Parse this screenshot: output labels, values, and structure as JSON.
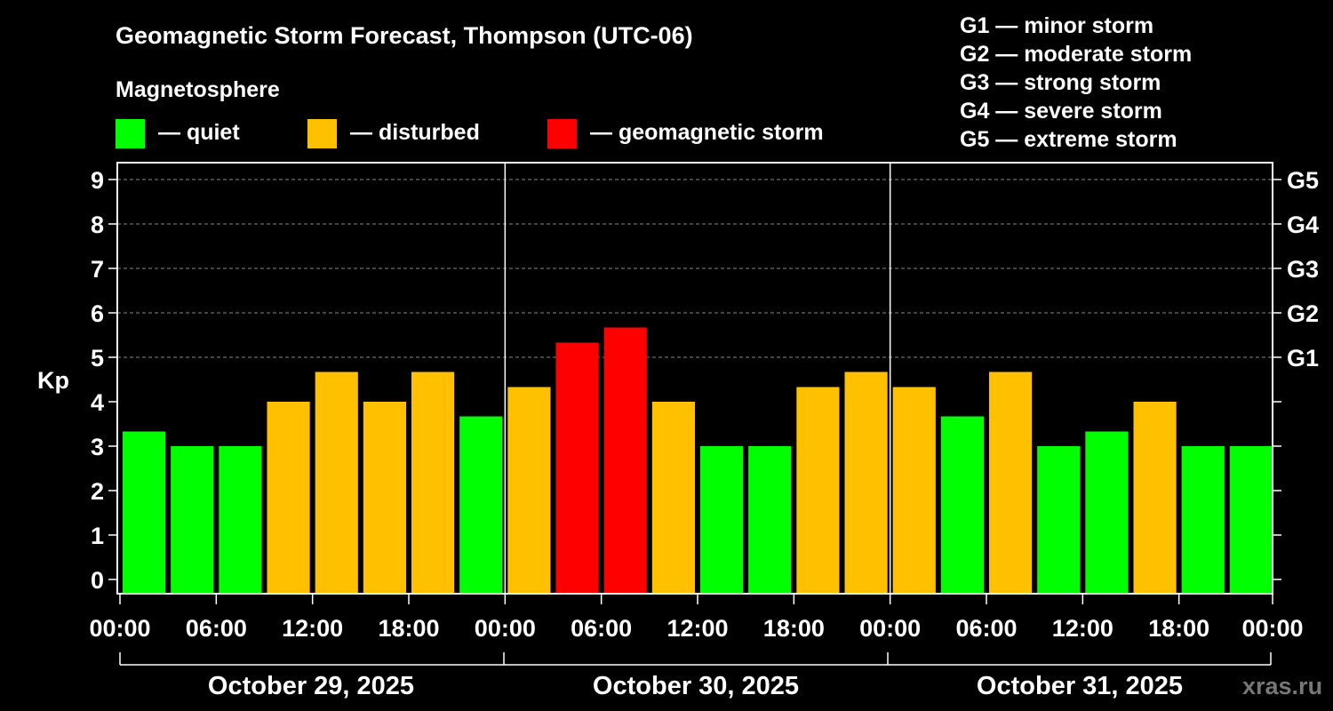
{
  "title": "Geomagnetic Storm Forecast, Thompson (UTC-06)",
  "legend": {
    "heading": "Magnetosphere",
    "items": [
      {
        "label": "— quiet",
        "color": "#00FF00"
      },
      {
        "label": "— disturbed",
        "color": "#FFC000"
      },
      {
        "label": "— geomagnetic storm",
        "color": "#FF0000"
      }
    ]
  },
  "g_legend": [
    "G1 — minor storm",
    "G2 — moderate storm",
    "G3 — strong storm",
    "G4 — severe storm",
    "G5 — extreme storm"
  ],
  "watermark": "xras.ru",
  "chart_data": {
    "type": "bar",
    "title": "Geomagnetic Storm Forecast, Thompson (UTC-06)",
    "ylabel": "Kp",
    "ylim": [
      0,
      9
    ],
    "yticks": [
      "0",
      "1",
      "2",
      "3",
      "4",
      "5",
      "6",
      "7",
      "8",
      "9"
    ],
    "right_axis": [
      {
        "kp": 5,
        "label": "G1"
      },
      {
        "kp": 6,
        "label": "G2"
      },
      {
        "kp": 7,
        "label": "G3"
      },
      {
        "kp": 8,
        "label": "G4"
      },
      {
        "kp": 9,
        "label": "G5"
      }
    ],
    "xticks": [
      "00:00",
      "06:00",
      "12:00",
      "18:00",
      "00:00",
      "06:00",
      "12:00",
      "18:00",
      "00:00",
      "06:00",
      "12:00",
      "18:00",
      "00:00"
    ],
    "days": [
      "October 29, 2025",
      "October 30, 2025",
      "October 31, 2025"
    ],
    "values": [
      3.33,
      3.0,
      3.0,
      4.0,
      4.67,
      4.0,
      4.67,
      3.67,
      4.33,
      5.33,
      5.67,
      4.0,
      3.0,
      3.0,
      4.33,
      4.67,
      4.33,
      3.67,
      4.67,
      3.0,
      3.33,
      4.0,
      3.0,
      3.0
    ],
    "levels": [
      "quiet",
      "quiet",
      "quiet",
      "disturbed",
      "disturbed",
      "disturbed",
      "disturbed",
      "quiet",
      "disturbed",
      "storm",
      "storm",
      "disturbed",
      "quiet",
      "quiet",
      "disturbed",
      "disturbed",
      "disturbed",
      "quiet",
      "disturbed",
      "quiet",
      "quiet",
      "disturbed",
      "quiet",
      "quiet"
    ],
    "level_colors": {
      "quiet": "#00FF00",
      "disturbed": "#FFC000",
      "storm": "#FF0000"
    },
    "grid": true
  }
}
